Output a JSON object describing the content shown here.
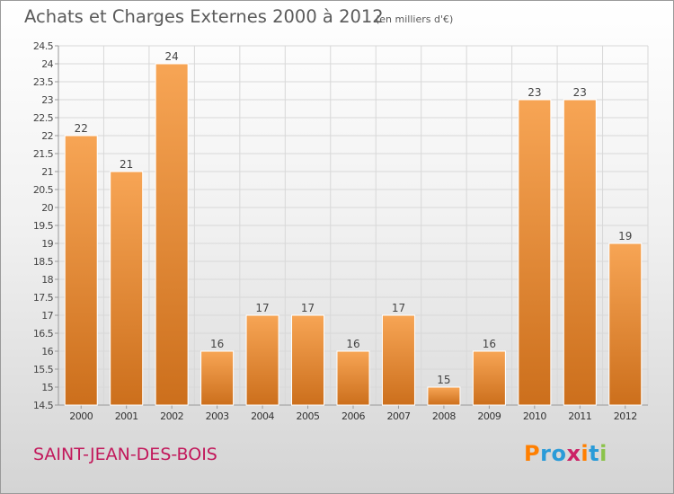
{
  "header": {
    "title": "Achats et Charges Externes 2000 à 2012",
    "subtitle": "(en milliers d'€)"
  },
  "footer": {
    "town": "SAINT-JEAN-DES-BOIS",
    "logo": "Proxiti"
  },
  "colors": {
    "bar_light": "#f7a555",
    "bar_dark": "#cc6f1c",
    "town": "#c2185b",
    "logo_letters": [
      "#ff7f00",
      "#2a9bd8",
      "#2a9bd8",
      "#cc2266",
      "#ff7f00",
      "#2a9bd8",
      "#8bc34a"
    ]
  },
  "chart_data": {
    "type": "bar",
    "title": "Achats et Charges Externes 2000 à 2012",
    "subtitle": "(en milliers d'€)",
    "categories": [
      "2000",
      "2001",
      "2002",
      "2003",
      "2004",
      "2005",
      "2006",
      "2007",
      "2008",
      "2009",
      "2010",
      "2011",
      "2012"
    ],
    "values": [
      22,
      21,
      24,
      16,
      17,
      17,
      16,
      17,
      15,
      16,
      23,
      23,
      19
    ],
    "ylim": [
      14.5,
      24.5
    ],
    "yticks": [
      "14.5",
      "15",
      "15.5",
      "16",
      "16.5",
      "17",
      "17.5",
      "18",
      "18.5",
      "19",
      "19.5",
      "20",
      "20.5",
      "21",
      "21.5",
      "22",
      "22.5",
      "23",
      "23.5",
      "24",
      "24.5"
    ],
    "grid": true,
    "legend": "none"
  }
}
